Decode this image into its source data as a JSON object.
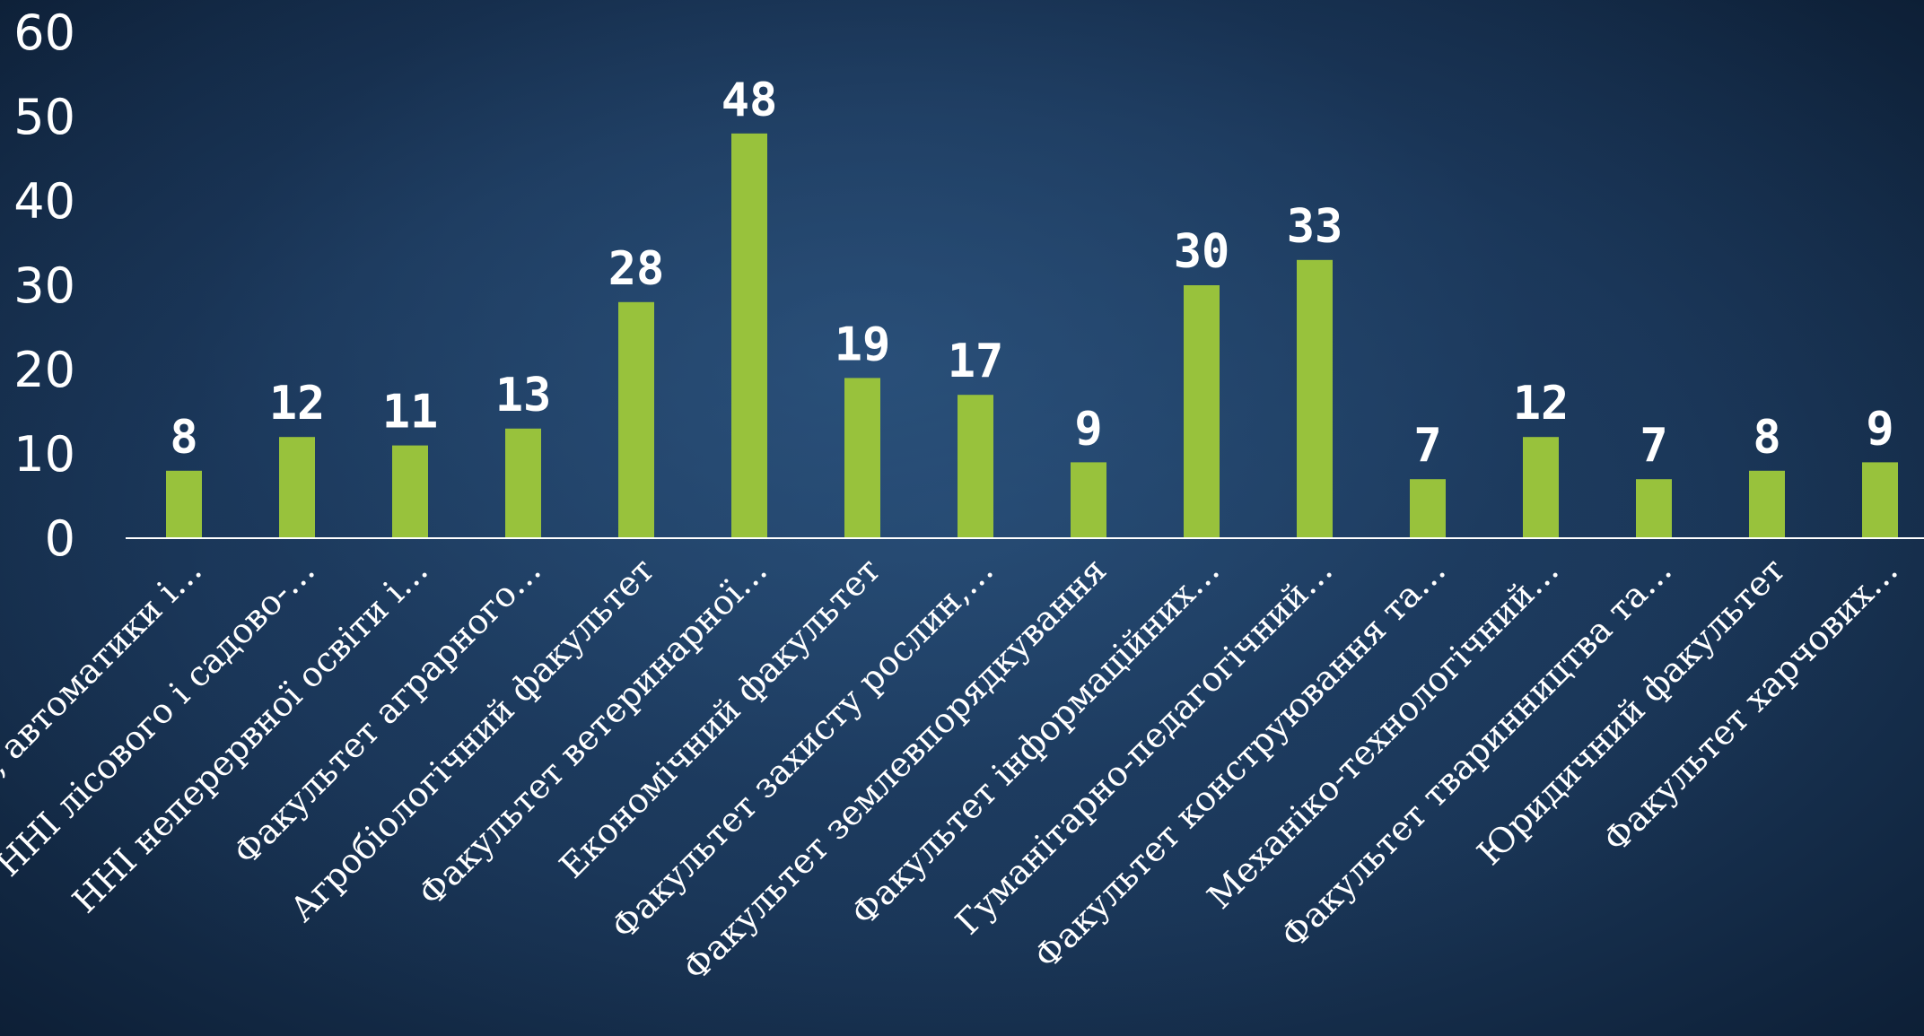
{
  "colors": {
    "bar": "#98c23c",
    "axis": "#ffffff",
    "text": "#ffffff"
  },
  "chart_data": {
    "type": "bar",
    "title": "",
    "xlabel": "",
    "ylabel": "",
    "ylim": [
      0,
      60
    ],
    "yticks": [
      0,
      10,
      20,
      30,
      40,
      50,
      60
    ],
    "grid": false,
    "legend": "none",
    "categories": [
      "ННІ енергетики, автоматики і…",
      "ННІ лісового і садово-…",
      "ННІ неперервної освіти і…",
      "Факультет аграрного…",
      "Агробіологічний факультет",
      "Факультет ветеринарної…",
      "Економічний факультет",
      "Факультет захисту рослин,…",
      "Факультет землевпорядкування",
      "Факультет інформаційних…",
      "Гуманітарно-педагогічний…",
      "Факультет конструювання та…",
      "Механіко-технологічний…",
      "Факультет тваринництва та…",
      "Юридичний факультет",
      "Факультет харчових…"
    ],
    "values": [
      8,
      12,
      11,
      13,
      28,
      48,
      19,
      17,
      9,
      30,
      33,
      7,
      12,
      7,
      8,
      9
    ]
  }
}
